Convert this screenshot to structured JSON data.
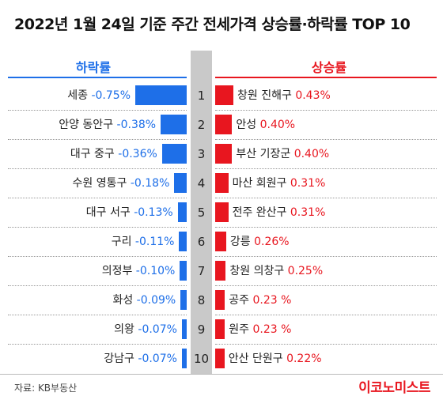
{
  "title": "2022년 1월 24일 기준 주간 전세가격 상승률·하락률 TOP 10",
  "source": "자료: KB부동산",
  "brand": "이코노미스트",
  "colors": {
    "decline": "#1e6fe8",
    "rise": "#e8161f",
    "rank_column": "#c9c9c9"
  },
  "chart_data": {
    "type": "bar",
    "orientation": "horizontal-diverging",
    "unit": "%",
    "ranks": [
      "1",
      "2",
      "3",
      "4",
      "5",
      "6",
      "7",
      "8",
      "9",
      "10"
    ],
    "decline": {
      "header": "하락률",
      "items": [
        {
          "name": "세종",
          "value": -0.75,
          "label": "-0.75%"
        },
        {
          "name": "안양 동안구",
          "value": -0.38,
          "label": "-0.38%"
        },
        {
          "name": "대구 중구",
          "value": -0.36,
          "label": "-0.36%"
        },
        {
          "name": "수원 영통구",
          "value": -0.18,
          "label": "-0.18%"
        },
        {
          "name": "대구 서구",
          "value": -0.13,
          "label": "-0.13%"
        },
        {
          "name": "구리",
          "value": -0.11,
          "label": "-0.11%"
        },
        {
          "name": "의정부",
          "value": -0.1,
          "label": "-0.10%"
        },
        {
          "name": "화성",
          "value": -0.09,
          "label": "-0.09%"
        },
        {
          "name": "의왕",
          "value": -0.07,
          "label": "-0.07%"
        },
        {
          "name": "강남구",
          "value": -0.07,
          "label": "-0.07%"
        }
      ]
    },
    "rise": {
      "header": "상승률",
      "items": [
        {
          "name": "창원 진해구",
          "value": 0.43,
          "label": "0.43%"
        },
        {
          "name": "안성",
          "value": 0.4,
          "label": "0.40%"
        },
        {
          "name": "부산 기장군",
          "value": 0.4,
          "label": "0.40%"
        },
        {
          "name": "마산 회원구",
          "value": 0.31,
          "label": "0.31%"
        },
        {
          "name": "전주 완산구",
          "value": 0.31,
          "label": "0.31%"
        },
        {
          "name": "강릉",
          "value": 0.26,
          "label": "0.26%"
        },
        {
          "name": "창원 의창구",
          "value": 0.25,
          "label": "0.25%"
        },
        {
          "name": "공주",
          "value": 0.23,
          "label": "0.23 %"
        },
        {
          "name": "원주",
          "value": 0.23,
          "label": "0.23 %"
        },
        {
          "name": "안산 단원구",
          "value": 0.22,
          "label": "0.22%"
        }
      ]
    }
  }
}
